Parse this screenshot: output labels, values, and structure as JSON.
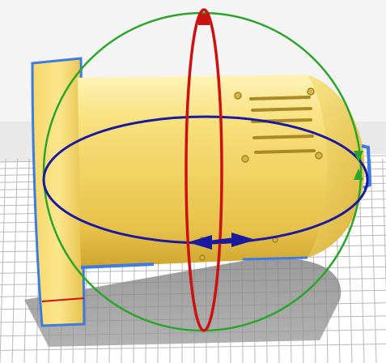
{
  "viewport": {
    "kind": "3d-slicer-viewport",
    "active_tool": "rotate",
    "background_color": "#f4f4f4",
    "build_plate_color": "#ffffff",
    "grid_line_color": "#b9b9b9",
    "model_color": "#f6dc6a",
    "model_outline_color": "#3d7be0"
  },
  "rotate_gizmo": {
    "ring_x_color": "#cc1111",
    "ring_y_color": "#2aa52a",
    "ring_z_color": "#1a1aa0",
    "handle_icon": "square-handle-icon",
    "arrow_icon": "arrow-icon"
  }
}
